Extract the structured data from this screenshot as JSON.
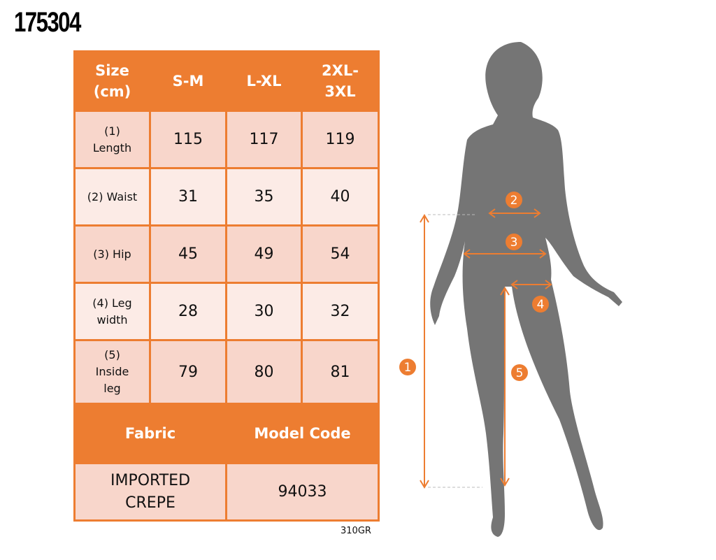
{
  "product_code": "175304",
  "table": {
    "header": [
      "Size (cm)",
      "S-M",
      "L-XL",
      "2XL-3XL"
    ],
    "rows": [
      {
        "label": "(1) Length",
        "values": [
          "115",
          "117",
          "119"
        ]
      },
      {
        "label": "(2) Waist",
        "values": [
          "31",
          "35",
          "40"
        ]
      },
      {
        "label": "(3) Hip",
        "values": [
          "45",
          "49",
          "54"
        ]
      },
      {
        "label": "(4) Leg width",
        "values": [
          "28",
          "30",
          "32"
        ]
      },
      {
        "label": "(5) Inside leg",
        "values": [
          "79",
          "80",
          "81"
        ]
      }
    ],
    "fabric_label": "Fabric",
    "model_code_label": "Model Code",
    "fabric_value": "IMPORTED CREPE",
    "model_code_value": "94033"
  },
  "footer_code": "310GR",
  "figure": {
    "markers": [
      "1",
      "2",
      "3",
      "4",
      "5"
    ]
  },
  "colors": {
    "accent": "#ED7D31",
    "row_dark": "#F8D6CB",
    "row_light": "#FCEBE6",
    "silhouette": "#757575"
  }
}
